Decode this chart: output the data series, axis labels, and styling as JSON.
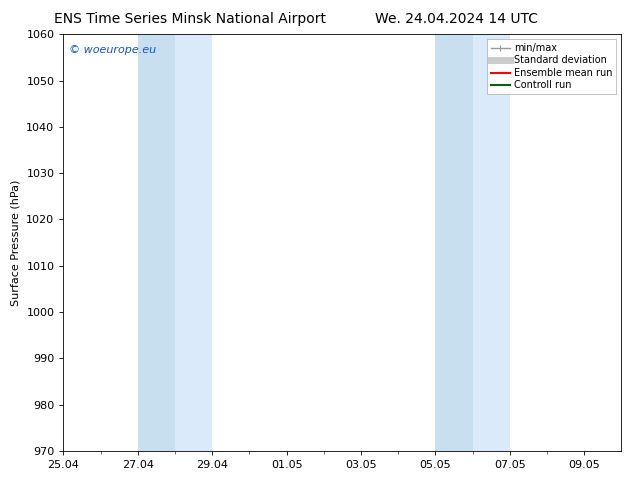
{
  "title_left": "ENS Time Series Minsk National Airport",
  "title_right": "We. 24.04.2024 14 UTC",
  "ylabel": "Surface Pressure (hPa)",
  "ylim": [
    970,
    1060
  ],
  "yticks": [
    970,
    980,
    990,
    1000,
    1010,
    1020,
    1030,
    1040,
    1050,
    1060
  ],
  "xtick_labels": [
    "25.04",
    "27.04",
    "29.04",
    "01.05",
    "03.05",
    "05.05",
    "07.05",
    "09.05"
  ],
  "shaded_regions": [
    {
      "start": 2,
      "end": 3,
      "color": "#c8dff0"
    },
    {
      "start": 3,
      "end": 4,
      "color": "#daeaf8"
    },
    {
      "start": 10,
      "end": 11,
      "color": "#c8dff0"
    },
    {
      "start": 11,
      "end": 12,
      "color": "#daeaf8"
    }
  ],
  "watermark_text": "© woeurope.eu",
  "watermark_color": "#1155cc",
  "legend_items": [
    {
      "label": "min/max",
      "color": "#999999",
      "lw": 1.0
    },
    {
      "label": "Standard deviation",
      "color": "#cccccc",
      "lw": 5
    },
    {
      "label": "Ensemble mean run",
      "color": "#ff0000",
      "lw": 1.5
    },
    {
      "label": "Controll run",
      "color": "#006400",
      "lw": 1.5
    }
  ],
  "bg_color": "#ffffff",
  "axes_bg_color": "#ffffff",
  "grid_color": "#cccccc",
  "title_fontsize": 10,
  "label_fontsize": 8,
  "tick_fontsize": 8,
  "ylabel_fontsize": 8,
  "legend_fontsize": 7
}
